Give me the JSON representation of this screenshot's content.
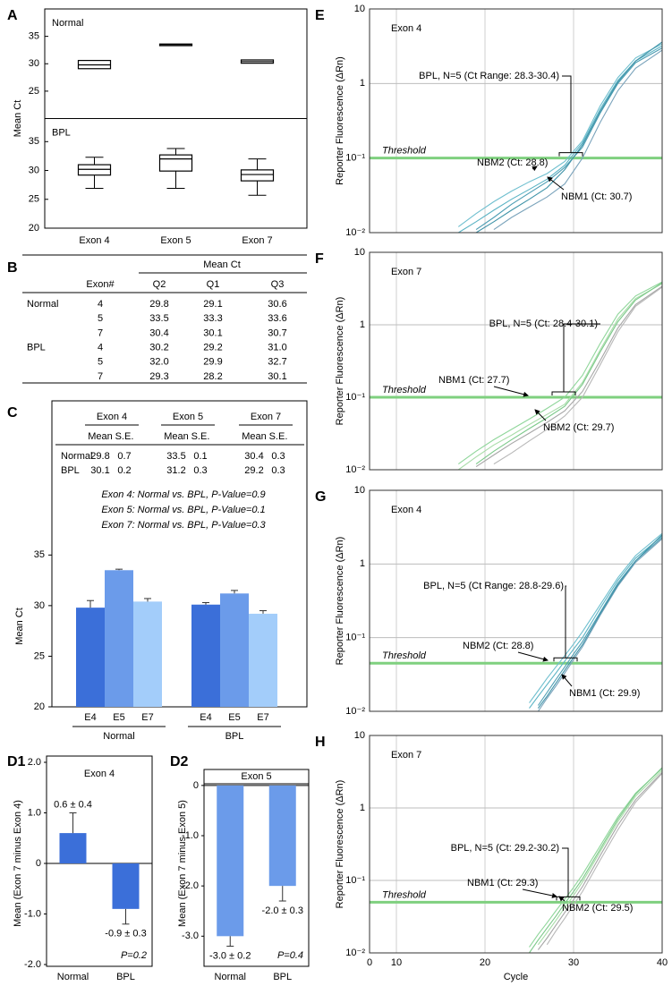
{
  "chart_data": [
    {
      "type": "box",
      "panel_label": "A",
      "ylabel": "Mean Ct",
      "categories": [
        "Exon 4",
        "Exon 5",
        "Exon 7"
      ],
      "series": [
        {
          "name": "Normal",
          "color": "#000000",
          "ylim": [
            20,
            40
          ],
          "yticks": [
            25,
            30,
            35
          ],
          "q1": [
            29.1,
            33.3,
            30.1
          ],
          "median": [
            29.8,
            33.5,
            30.4
          ],
          "q3": [
            30.6,
            33.6,
            30.7
          ]
        },
        {
          "name": "BPL",
          "color": "#000000",
          "ylim": [
            20,
            39
          ],
          "yticks": [
            20,
            25,
            30,
            35
          ],
          "whisker_low": [
            26.9,
            26.9,
            25.7
          ],
          "q1": [
            29.2,
            29.9,
            28.2
          ],
          "median": [
            30.2,
            32.0,
            29.3
          ],
          "q3": [
            31.0,
            32.7,
            30.1
          ],
          "whisker_high": [
            32.3,
            33.8,
            32.0
          ]
        }
      ]
    },
    {
      "type": "grouped_bar",
      "panel_label": "C",
      "table": {
        "columns": [
          "Exon 4",
          "Exon 5",
          "Exon 7"
        ],
        "subcolumns": [
          "Mean",
          "S.E."
        ],
        "rows": [
          {
            "name": "Normal",
            "cells": [
              "29.8",
              "0.7",
              "33.5",
              "0.1",
              "30.4",
              "0.3"
            ]
          },
          {
            "name": "BPL",
            "cells": [
              "30.1",
              "0.2",
              "31.2",
              "0.3",
              "29.2",
              "0.3"
            ]
          }
        ]
      },
      "annotations": [
        "Exon 4: Normal vs. BPL, P-Value=0.9",
        "Exon 5: Normal vs. BPL, P-Value=0.1",
        "Exon 7: Normal vs. BPL, P-Value=0.3"
      ],
      "ylabel": "Mean Ct",
      "groups": [
        "Normal",
        "BPL"
      ],
      "series": [
        {
          "name": "E4",
          "color": "#3b6fd9",
          "values": [
            29.8,
            30.1
          ],
          "errors": [
            0.7,
            0.2
          ]
        },
        {
          "name": "E5",
          "color": "#6b9bea",
          "values": [
            33.5,
            31.2
          ],
          "errors": [
            0.1,
            0.3
          ]
        },
        {
          "name": "E7",
          "color": "#a3cdfa",
          "values": [
            30.4,
            29.2
          ],
          "errors": [
            0.3,
            0.3
          ]
        }
      ],
      "ylim": [
        20,
        36
      ],
      "yticks": [
        20,
        25,
        30,
        35
      ]
    },
    {
      "type": "bar",
      "panel_label": "D1",
      "title": "Exon 4",
      "ylabel": "Mean (Exon 7 minus Exon 4)",
      "categories": [
        "Normal",
        "BPL"
      ],
      "values": [
        0.6,
        -0.9
      ],
      "errors": [
        0.4,
        0.3
      ],
      "value_labels": [
        "0.6 ± 0.4",
        "-0.9 ± 0.3"
      ],
      "color": "#3b6fd9",
      "annotation": "P=0.2",
      "ylim": [
        -2,
        2
      ],
      "yticks": [
        {
          "value": -2,
          "label": "-2.0"
        },
        {
          "value": -1,
          "label": "-1.0"
        },
        0,
        {
          "value": 1,
          "label": "1.0"
        },
        {
          "value": 2,
          "label": "2.0"
        }
      ]
    },
    {
      "type": "bar",
      "panel_label": "D2",
      "title": "Exon 5",
      "ylabel": "Mean (Exon 7 minus Exon 5)",
      "categories": [
        "Normal",
        "BPL"
      ],
      "values": [
        -3,
        -2
      ],
      "errors": [
        0.2,
        0.3
      ],
      "value_labels": [
        "-3.0 ± 0.2",
        "-2.0 ± 0.3"
      ],
      "color": "#6b9bea",
      "annotation": "P=0.4",
      "ylim": [
        -3.6,
        0.3
      ],
      "yticks": [
        {
          "value": -3,
          "label": "-3.0"
        },
        {
          "value": -2,
          "label": "-2.0"
        },
        {
          "value": -1,
          "label": "-1.0"
        },
        0
      ]
    },
    {
      "type": "line",
      "panel_label": "E",
      "title": "Exon 4",
      "ylabel": "Reporter Fluorescence (ΔRn)",
      "log_y": true,
      "ylim": [
        0.01,
        10
      ],
      "yticks": [
        {
          "value": 0.01,
          "label": "10⁻²"
        },
        {
          "value": 0.1,
          "label": "10⁻¹"
        },
        1,
        10
      ],
      "xlim": [
        0,
        40
      ],
      "xticks": [
        0,
        10,
        20,
        30,
        40
      ],
      "x_tick_labels": false,
      "axis_break": true,
      "grid": true,
      "threshold": {
        "value": 0.1,
        "label": "Threshold",
        "color": "#7fd07f"
      },
      "annotations": [
        "BPL, N=5 (Ct Range: 28.3-30.4)",
        "NBM2 (Ct: 28.8)",
        "NBM1 (Ct: 30.7)"
      ],
      "x": [
        17,
        19,
        21,
        23,
        25,
        27,
        29,
        31,
        33,
        35,
        37,
        40
      ],
      "series": [
        {
          "color": "#5ab3c4",
          "values": [
            0.01,
            0.014,
            0.02,
            0.028,
            0.038,
            0.052,
            0.08,
            0.16,
            0.45,
            1.1,
            2.0,
            3.2
          ]
        },
        {
          "color": "#4c9db3",
          "values": [
            null,
            0.011,
            0.016,
            0.024,
            0.034,
            0.048,
            0.075,
            0.14,
            0.4,
            1.0,
            1.9,
            3.0
          ]
        },
        {
          "color": "#6fbfcf",
          "values": [
            0.012,
            0.018,
            0.026,
            0.036,
            0.048,
            0.062,
            0.09,
            0.17,
            0.5,
            1.2,
            2.2,
            3.4
          ]
        },
        {
          "color": "#7aa3bb",
          "values": [
            null,
            null,
            0.011,
            0.016,
            0.022,
            0.03,
            0.045,
            0.1,
            0.3,
            0.8,
            1.6,
            2.8
          ]
        },
        {
          "color": "#3f93a8",
          "values": [
            null,
            0.01,
            0.014,
            0.02,
            0.028,
            0.04,
            0.07,
            0.15,
            0.42,
            1.05,
            2.0,
            3.6
          ]
        }
      ]
    },
    {
      "type": "line",
      "panel_label": "F",
      "title": "Exon 7",
      "ylabel": "Reporter Fluorescence (ΔRn)",
      "log_y": true,
      "ylim": [
        0.01,
        10
      ],
      "yticks": [
        {
          "value": 0.01,
          "label": "10⁻²"
        },
        {
          "value": 0.1,
          "label": "10⁻¹"
        },
        1,
        10
      ],
      "xlim": [
        0,
        40
      ],
      "xticks": [
        0,
        10,
        20,
        30,
        40
      ],
      "x_tick_labels": false,
      "axis_break": true,
      "grid": true,
      "threshold": {
        "value": 0.1,
        "label": "Threshold",
        "color": "#7fd07f"
      },
      "annotations": [
        "BPL, N=5 (Ct: 28.4-30.1)",
        "NBM1 (Ct: 27.7)",
        "NBM2 (Ct: 29.7)"
      ],
      "x": [
        17,
        19,
        21,
        23,
        25,
        27,
        29,
        31,
        33,
        35,
        37,
        40
      ],
      "series": [
        {
          "color": "#8fd69a",
          "values": [
            0.012,
            0.018,
            0.026,
            0.036,
            0.05,
            0.07,
            0.1,
            0.2,
            0.55,
            1.4,
            2.5,
            3.9
          ]
        },
        {
          "color": "#a8dca8",
          "values": [
            0.01,
            0.015,
            0.022,
            0.03,
            0.042,
            0.058,
            0.08,
            0.16,
            0.45,
            1.2,
            2.3,
            3.7
          ]
        },
        {
          "color": "#a6a6a6",
          "values": [
            null,
            0.011,
            0.016,
            0.023,
            0.032,
            0.045,
            0.065,
            0.12,
            0.32,
            0.9,
            1.9,
            3.4
          ]
        },
        {
          "color": "#b8b8b8",
          "values": [
            null,
            null,
            0.012,
            0.017,
            0.025,
            0.036,
            0.055,
            0.1,
            0.28,
            0.8,
            1.8,
            3.3
          ]
        },
        {
          "color": "#7cc98a",
          "values": [
            null,
            0.012,
            0.018,
            0.026,
            0.037,
            0.052,
            0.075,
            0.15,
            0.42,
            1.1,
            2.2,
            3.8
          ]
        }
      ]
    },
    {
      "type": "line",
      "panel_label": "G",
      "title": "Exon 4",
      "ylabel": "Reporter Fluorescence (ΔRn)",
      "log_y": true,
      "ylim": [
        0.01,
        10
      ],
      "yticks": [
        {
          "value": 0.01,
          "label": "10⁻²"
        },
        {
          "value": 0.1,
          "label": "10⁻¹"
        },
        1,
        10
      ],
      "xlim": [
        0,
        40
      ],
      "xticks": [
        0,
        10,
        20,
        30,
        40
      ],
      "x_tick_labels": false,
      "axis_break": true,
      "grid": true,
      "threshold": {
        "value": 0.045,
        "label": "Threshold",
        "color": "#7fd07f"
      },
      "annotations": [
        "BPL, N=5 (Ct Range: 28.8-29.6)",
        "NBM2 (Ct: 28.8)",
        "NBM1 (Ct: 29.9)"
      ],
      "x": [
        25,
        26,
        27,
        28,
        29,
        30,
        31,
        33,
        35,
        37,
        40
      ],
      "series": [
        {
          "color": "#5ab3c4",
          "values": [
            0.011,
            0.016,
            0.023,
            0.033,
            0.048,
            0.07,
            0.1,
            0.25,
            0.6,
            1.2,
            2.4
          ]
        },
        {
          "color": "#4c9db3",
          "values": [
            null,
            0.012,
            0.018,
            0.027,
            0.04,
            0.06,
            0.088,
            0.22,
            0.55,
            1.1,
            2.3
          ]
        },
        {
          "color": "#6fbfcf",
          "values": [
            0.013,
            0.019,
            0.028,
            0.04,
            0.057,
            0.082,
            0.12,
            0.28,
            0.65,
            1.3,
            2.6
          ]
        },
        {
          "color": "#7aa3bb",
          "values": [
            null,
            0.01,
            0.015,
            0.022,
            0.033,
            0.05,
            0.075,
            0.2,
            0.5,
            1.05,
            2.2
          ]
        },
        {
          "color": "#3f93a8",
          "values": [
            null,
            0.011,
            0.016,
            0.024,
            0.036,
            0.054,
            0.08,
            0.21,
            0.52,
            1.1,
            2.5
          ]
        }
      ]
    },
    {
      "type": "line",
      "panel_label": "H",
      "title": "Exon 7",
      "ylabel": "Reporter Fluorescence (ΔRn)",
      "xlabel": "Cycle",
      "log_y": true,
      "ylim": [
        0.01,
        10
      ],
      "yticks": [
        {
          "value": 0.01,
          "label": "10⁻²"
        },
        {
          "value": 0.1,
          "label": "10⁻¹"
        },
        1,
        10
      ],
      "xlim": [
        0,
        40
      ],
      "xticks": [
        0,
        10,
        20,
        30,
        40
      ],
      "x_tick_labels": true,
      "axis_break": true,
      "grid": true,
      "threshold": {
        "value": 0.05,
        "label": "Threshold",
        "color": "#7fd07f"
      },
      "annotations": [
        "BPL, N=5 (Ct: 29.2-30.2)",
        "NBM1 (Ct: 29.3)",
        "NBM2 (Ct: 29.5)"
      ],
      "x": [
        25,
        26,
        27,
        28,
        29,
        30,
        31,
        33,
        35,
        37,
        40
      ],
      "series": [
        {
          "color": "#8fd69a",
          "values": [
            0.012,
            0.018,
            0.026,
            0.038,
            0.055,
            0.08,
            0.12,
            0.3,
            0.75,
            1.6,
            3.5
          ]
        },
        {
          "color": "#a8dca8",
          "values": [
            null,
            0.013,
            0.019,
            0.028,
            0.042,
            0.062,
            0.095,
            0.25,
            0.65,
            1.45,
            3.3
          ]
        },
        {
          "color": "#a6a6a6",
          "values": [
            null,
            0.011,
            0.016,
            0.024,
            0.036,
            0.054,
            0.082,
            0.22,
            0.58,
            1.3,
            3.1
          ]
        },
        {
          "color": "#b8b8b8",
          "values": [
            null,
            null,
            0.013,
            0.02,
            0.03,
            0.046,
            0.07,
            0.19,
            0.5,
            1.2,
            3.0
          ]
        },
        {
          "color": "#7cc98a",
          "values": [
            0.01,
            0.015,
            0.022,
            0.032,
            0.048,
            0.07,
            0.105,
            0.27,
            0.7,
            1.55,
            3.6
          ]
        }
      ]
    }
  ],
  "table_b": {
    "panel_label": "B",
    "header": "Mean Ct",
    "columns": [
      "Exon#",
      "Q2",
      "Q1",
      "Q3"
    ],
    "groups": [
      {
        "name": "Normal",
        "rows": [
          [
            "4",
            "29.8",
            "29.1",
            "30.6"
          ],
          [
            "5",
            "33.5",
            "33.3",
            "33.6"
          ],
          [
            "7",
            "30.4",
            "30.1",
            "30.7"
          ]
        ]
      },
      {
        "name": "BPL",
        "rows": [
          [
            "4",
            "30.2",
            "29.2",
            "31.0"
          ],
          [
            "5",
            "32.0",
            "29.9",
            "32.7"
          ],
          [
            "7",
            "29.3",
            "28.2",
            "30.1"
          ]
        ]
      }
    ]
  }
}
